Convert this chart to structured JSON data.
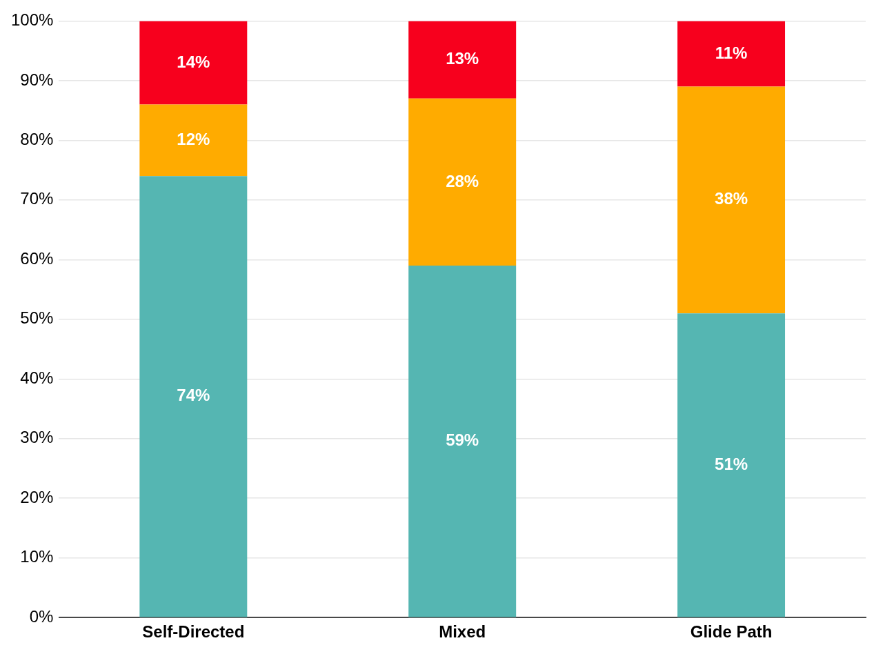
{
  "chart_data": {
    "type": "bar",
    "stacked": true,
    "grid": "y",
    "categories": [
      "Self-Directed",
      "Mixed",
      "Glide Path"
    ],
    "series": [
      {
        "color": "#55b6b2",
        "values": [
          74,
          59,
          51
        ],
        "value_labels": [
          "74%",
          "59%",
          "51%"
        ]
      },
      {
        "color": "#ffab00",
        "values": [
          12,
          28,
          38
        ],
        "value_labels": [
          "12%",
          "28%",
          "38%"
        ]
      },
      {
        "color": "#f7001d",
        "values": [
          14,
          13,
          11
        ],
        "value_labels": [
          "14%",
          "13%",
          "11%"
        ]
      }
    ],
    "ylim": [
      0,
      100
    ],
    "yticks": [
      {
        "value": 0,
        "label": "0%"
      },
      {
        "value": 10,
        "label": "10%"
      },
      {
        "value": 20,
        "label": "20%"
      },
      {
        "value": 30,
        "label": "30%"
      },
      {
        "value": 40,
        "label": "40%"
      },
      {
        "value": 50,
        "label": "50%"
      },
      {
        "value": 60,
        "label": "60%"
      },
      {
        "value": 70,
        "label": "70%"
      },
      {
        "value": 80,
        "label": "80%"
      },
      {
        "value": 90,
        "label": "90%"
      },
      {
        "value": 100,
        "label": "100%"
      }
    ]
  }
}
